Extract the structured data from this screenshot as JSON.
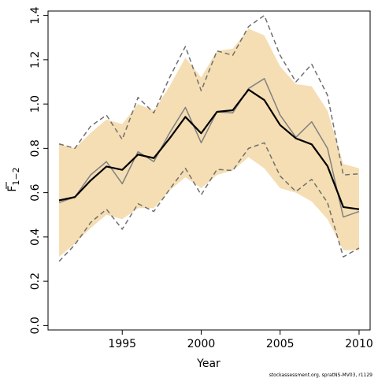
{
  "chart_data": {
    "type": "line",
    "xlabel": "Year",
    "ylabel": {
      "main": "F",
      "subscript": "1−2"
    },
    "x_ticks": [
      1995,
      2000,
      2005,
      2010
    ],
    "y_ticks": [
      0.0,
      0.2,
      0.4,
      0.6,
      0.8,
      1.0,
      1.2,
      1.4
    ],
    "y_tick_labels": [
      "0.0",
      "0.2",
      "0.4",
      "0.6",
      "0.8",
      "1.0",
      "1.2",
      "1.4"
    ],
    "xlim": [
      1990.3,
      2010.7
    ],
    "ylim": [
      -0.02,
      1.42
    ],
    "grid": false,
    "colors": {
      "band": "#f5deb3",
      "estimate": "#000000",
      "comparison": "#808080",
      "comparison_ci": "#707070"
    },
    "x": [
      1991,
      1992,
      1993,
      1994,
      1995,
      1996,
      1997,
      1998,
      1999,
      2000,
      2001,
      2002,
      2003,
      2004,
      2005,
      2006,
      2007,
      2008,
      2009,
      2010
    ],
    "series": [
      {
        "role": "band",
        "upper": [
          0.82,
          0.8,
          0.87,
          0.93,
          0.91,
          1.0,
          0.97,
          1.08,
          1.21,
          1.12,
          1.24,
          1.25,
          1.34,
          1.31,
          1.17,
          1.09,
          1.08,
          0.97,
          0.73,
          0.71
        ],
        "lower": [
          0.31,
          0.37,
          0.44,
          0.5,
          0.48,
          0.53,
          0.53,
          0.61,
          0.67,
          0.62,
          0.68,
          0.7,
          0.76,
          0.71,
          0.62,
          0.6,
          0.56,
          0.48,
          0.34,
          0.34
        ]
      },
      {
        "role": "estimate",
        "values": [
          0.565,
          0.58,
          0.655,
          0.718,
          0.703,
          0.772,
          0.756,
          0.845,
          0.942,
          0.868,
          0.965,
          0.972,
          1.065,
          1.018,
          0.905,
          0.845,
          0.818,
          0.72,
          0.535,
          0.525
        ]
      },
      {
        "role": "comparison",
        "values": [
          0.555,
          0.58,
          0.68,
          0.74,
          0.64,
          0.785,
          0.74,
          0.87,
          0.985,
          0.825,
          0.965,
          0.96,
          1.07,
          1.115,
          0.95,
          0.85,
          0.92,
          0.8,
          0.49,
          0.515
        ]
      },
      {
        "role": "comparison_upper",
        "values": [
          0.82,
          0.8,
          0.9,
          0.95,
          0.84,
          1.03,
          0.96,
          1.12,
          1.26,
          1.06,
          1.24,
          1.22,
          1.35,
          1.4,
          1.22,
          1.1,
          1.18,
          1.04,
          0.68,
          0.685
        ]
      },
      {
        "role": "comparison_lower",
        "values": [
          0.29,
          0.365,
          0.465,
          0.525,
          0.435,
          0.55,
          0.515,
          0.615,
          0.71,
          0.59,
          0.705,
          0.7,
          0.8,
          0.825,
          0.675,
          0.605,
          0.66,
          0.555,
          0.31,
          0.35
        ]
      }
    ]
  },
  "footnote": "stockassessment.org, spratNS-MV03, r1129"
}
